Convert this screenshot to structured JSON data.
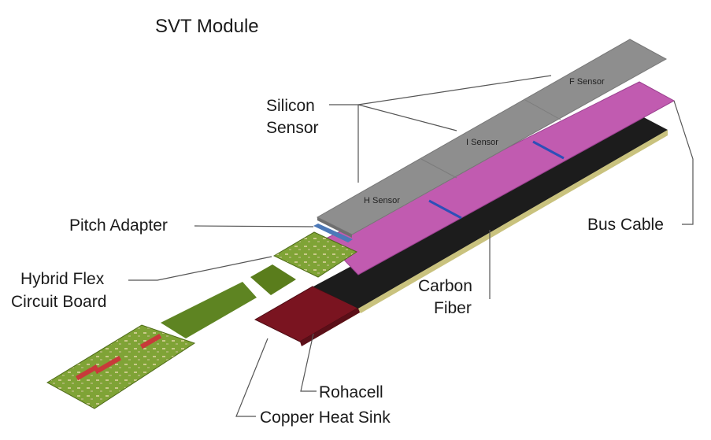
{
  "title": "SVT Module",
  "labels": {
    "silicon_sensor_line1": "Silicon",
    "silicon_sensor_line2": "Sensor",
    "pitch_adapter": "Pitch Adapter",
    "hybrid_line1": "Hybrid Flex",
    "hybrid_line2": "Circuit Board",
    "bus_cable": "Bus Cable",
    "carbon_line1": "Carbon",
    "carbon_line2": "Fiber",
    "rohacell": "Rohacell",
    "copper_heat_sink": "Copper Heat Sink"
  },
  "sensors": {
    "h": "H Sensor",
    "i": "I Sensor",
    "f": "F Sensor"
  },
  "colors": {
    "sensor": "#8e8e8e",
    "sensor_dark": "#6f6f6f",
    "bus_cable": "#c15bb0",
    "bus_stripe": "#2d4fb8",
    "carbon": "#1c1c1c",
    "rohacell": "#d6cf8f",
    "copper": "#7a1420",
    "hybrid": "#6f9a2a",
    "hybrid_flex": "#5a7d1c",
    "trace": "#c83a3a"
  }
}
